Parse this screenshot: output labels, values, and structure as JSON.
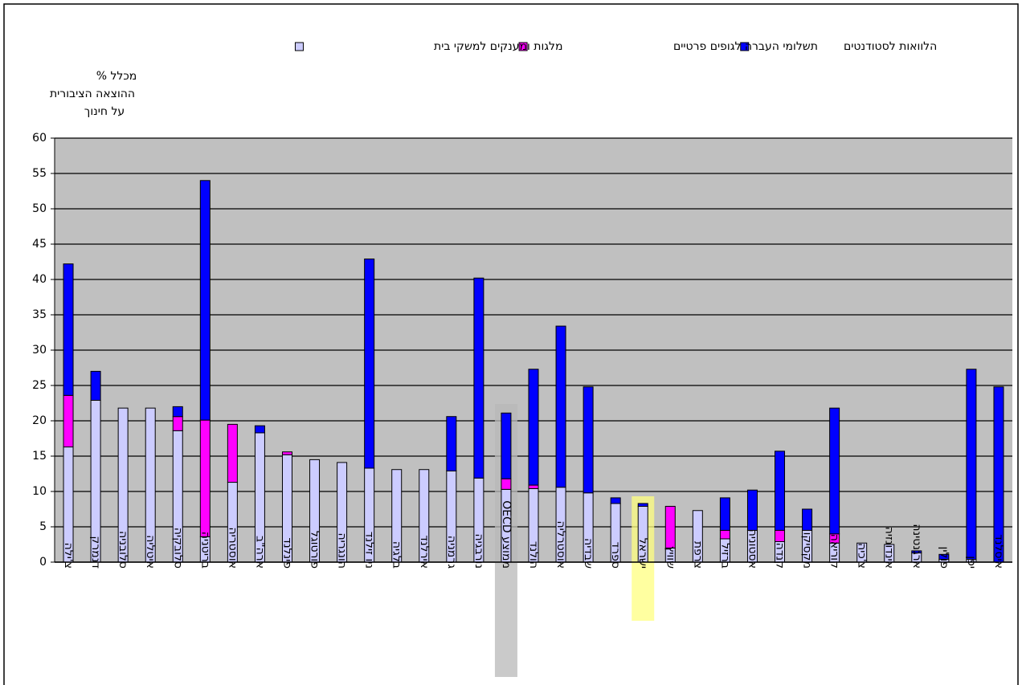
{
  "chart_data": {
    "type": "stacked_bar",
    "y_label": [
      "% מכלל",
      "ההוצאה הציבורית",
      "על חינוך"
    ],
    "categories": [
      "צ'ילה",
      "דנמרק",
      "סלובניה",
      "איטליה",
      "סלובקיה",
      "בריטניה",
      "אוסטריה",
      "ארה\"ב",
      "פינלנד",
      "פורטוגל",
      "הונגריה",
      "ניו זילנד",
      "בלגיה",
      "אירלנד",
      "גרמניה",
      "נורבגיה",
      "ממוצע OECD",
      "הולנד",
      "אוסטרליה",
      "שבדיה",
      "ספרד",
      "ישראל",
      "שוויץ",
      "צרפת",
      "ברזיל",
      "אסטוניה",
      "קנדה",
      "מקסיקו",
      "קוריאה",
      "צ'כיה",
      "אינדונזיה",
      "ארגנטינה",
      "פולין",
      "יפן",
      "איסלנד"
    ],
    "series": [
      {
        "name": "מלגות ומענקים למשקי בית",
        "color": "#ccccff",
        "values": [
          16.3,
          22.9,
          21.8,
          21.8,
          18.6,
          3.6,
          11.3,
          18.3,
          15.2,
          14.5,
          14.1,
          13.3,
          13.1,
          13.1,
          12.9,
          11.9,
          10.3,
          10.4,
          10.6,
          9.8,
          8.3,
          7.9,
          2.0,
          7.3,
          3.3,
          4.5,
          2.9,
          4.5,
          2.7,
          2.7,
          2.5,
          1.3,
          0.4,
          0.4,
          0
        ]
      },
      {
        "name": "תשלומי העברה לגופים פרטיים",
        "color": "#ff00ff",
        "values": [
          7.3,
          0,
          0,
          0,
          2.0,
          16.5,
          8.2,
          0,
          0.4,
          0,
          0,
          0,
          0,
          0,
          0,
          0,
          1.5,
          0.5,
          0,
          0,
          0,
          0,
          5.9,
          0,
          1.2,
          0,
          1.6,
          0,
          1.3,
          0,
          0,
          0,
          0,
          0,
          0
        ]
      },
      {
        "name": "הלוואות לסטודנטים",
        "color": "#0000ff",
        "values": [
          18.6,
          4.1,
          0,
          0,
          1.4,
          33.9,
          0,
          1.0,
          0,
          0,
          0,
          29.6,
          0,
          0,
          7.7,
          28.3,
          9.3,
          16.4,
          22.8,
          15.0,
          0.8,
          0.4,
          0,
          0,
          4.6,
          5.7,
          11.2,
          3.0,
          17.8,
          0,
          0,
          0.3,
          0.7,
          26.9,
          24.8
        ]
      }
    ],
    "highlights": [
      {
        "category": 16,
        "color": "#b8b8b8"
      },
      {
        "category": 21,
        "color": "#ffff80"
      }
    ],
    "ylim": [
      0,
      60
    ],
    "yticks": [
      0,
      5,
      10,
      15,
      20,
      25,
      30,
      35,
      40,
      45,
      50,
      55,
      60
    ],
    "grid": true,
    "plot_background": "#c0c0c0",
    "legend": "top"
  }
}
